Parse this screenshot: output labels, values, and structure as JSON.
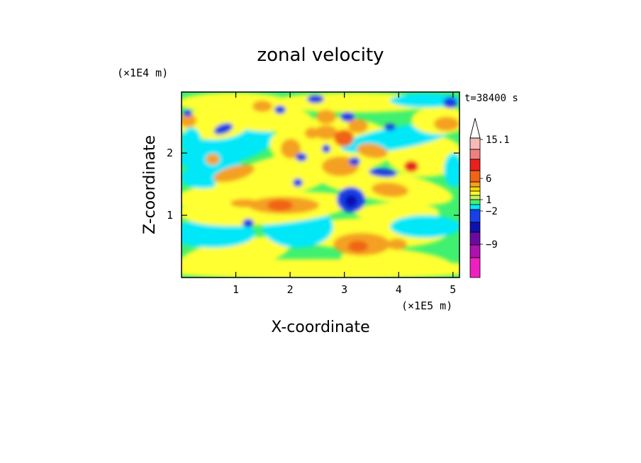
{
  "chart_data": {
    "type": "heatmap",
    "title": "zonal velocity",
    "xlabel": "X-coordinate",
    "ylabel": "Z-coordinate",
    "x_multiplier": "(×1E5 m)",
    "y_multiplier": "(×1E4 m)",
    "time_label": "t=38400 s",
    "xlim": [
      0,
      5.12
    ],
    "ylim": [
      0,
      2.98
    ],
    "x_ticks": [
      1,
      2,
      3,
      4,
      5
    ],
    "y_ticks": [
      1,
      2
    ],
    "colorbar": {
      "labels": [
        {
          "value": 15.1,
          "text": "15.1"
        },
        {
          "value": 6,
          "text": "6"
        },
        {
          "value": 1,
          "text": "1"
        },
        {
          "value": -2,
          "text": "−2"
        },
        {
          "value": -9,
          "text": "−9"
        }
      ],
      "levels": [
        {
          "color": "#f8b9b9"
        },
        {
          "color": "#f08080"
        },
        {
          "color": "#e82020"
        },
        {
          "color": "#f06418"
        },
        {
          "color": "#f4a020"
        },
        {
          "color": "#ffd800"
        },
        {
          "color": "#ffff30"
        },
        {
          "color": "#c8f060"
        },
        {
          "color": "#40f070"
        },
        {
          "color": "#00e8f8"
        },
        {
          "color": "#1840e8"
        },
        {
          "color": "#1010b0"
        },
        {
          "color": "#6a0aa0"
        },
        {
          "color": "#b010b0"
        },
        {
          "color": "#f020c0"
        }
      ]
    }
  }
}
